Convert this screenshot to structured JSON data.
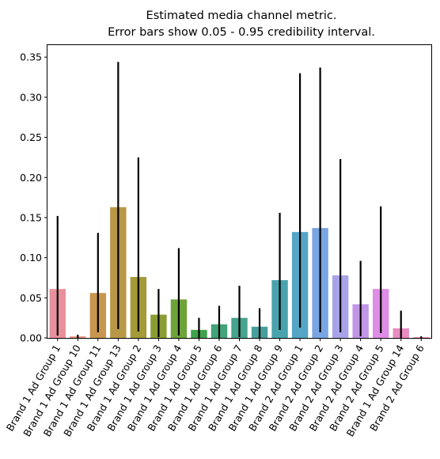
{
  "chart_data": {
    "type": "bar",
    "title_lines": [
      "Estimated media channel metric.",
      "Error bars show 0.05 - 0.95 credibility interval."
    ],
    "xlabel": "",
    "ylabel": "",
    "ylim": [
      0,
      0.365
    ],
    "yticks": [
      0.0,
      0.05,
      0.1,
      0.15,
      0.2,
      0.25,
      0.3,
      0.35
    ],
    "ytick_labels": [
      "0.00",
      "0.05",
      "0.10",
      "0.15",
      "0.20",
      "0.25",
      "0.30",
      "0.35"
    ],
    "grid": false,
    "categories": [
      "Brand 1 Ad Group 1",
      "Brand 1 Ad Group 10",
      "Brand 1 Ad Group 11",
      "Brand 1 Ad Group 13",
      "Brand 1 Ad Group 2",
      "Brand 1 Ad Group 3",
      "Brand 1 Ad Group 4",
      "Brand 1 Ad Group 5",
      "Brand 1 Ad Group 6",
      "Brand 1 Ad Group 7",
      "Brand 1 Ad Group 8",
      "Brand 1 Ad Group 9",
      "Brand 2 Ad Group 1",
      "Brand 2 Ad Group 2",
      "Brand 2 Ad Group 3",
      "Brand 2 Ad Group 4",
      "Brand 2 Ad Group 5",
      "Brand 1 Ad Group 14",
      "Brand 2 Ad Group 6"
    ],
    "values": [
      0.061,
      0.002,
      0.056,
      0.163,
      0.076,
      0.029,
      0.048,
      0.01,
      0.017,
      0.025,
      0.014,
      0.072,
      0.132,
      0.137,
      0.078,
      0.042,
      0.061,
      0.012,
      0.001
    ],
    "err_low": [
      0.003,
      0.0,
      0.007,
      0.011,
      0.008,
      0.001,
      0.003,
      0.0,
      0.0,
      0.001,
      0.0,
      0.01,
      0.013,
      0.007,
      0.007,
      0.002,
      0.006,
      0.0,
      0.0
    ],
    "err_high": [
      0.152,
      0.004,
      0.131,
      0.344,
      0.225,
      0.061,
      0.112,
      0.025,
      0.04,
      0.065,
      0.037,
      0.156,
      0.33,
      0.337,
      0.223,
      0.096,
      0.164,
      0.034,
      0.002
    ],
    "colors": [
      "#e8909c",
      "#e49a80",
      "#c9964f",
      "#b89846",
      "#a49a38",
      "#8a9d33",
      "#6ea33a",
      "#3ea24d",
      "#43a37b",
      "#45a38e",
      "#469f9c",
      "#48a3ad",
      "#54a5c6",
      "#79a5e2",
      "#a8a2e8",
      "#c296e6",
      "#df8ce6",
      "#e88bc0",
      "#e88fa8"
    ]
  }
}
